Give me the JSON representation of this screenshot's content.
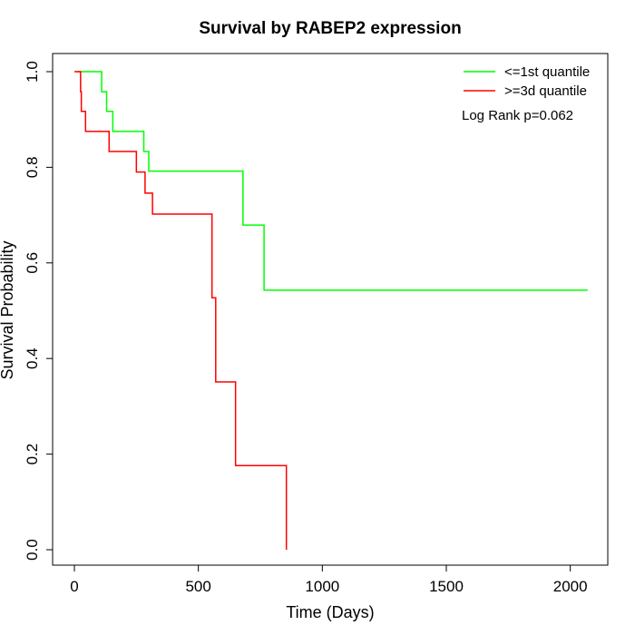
{
  "chart_data": {
    "type": "line",
    "title": "Survival by RABEP2 expression",
    "xlabel": "Time (Days)",
    "ylabel": "Survival Probability",
    "xlim": [
      0,
      2100
    ],
    "ylim": [
      0,
      1
    ],
    "x_ticks": [
      0,
      500,
      1000,
      1500,
      2000
    ],
    "y_ticks": [
      0.0,
      0.2,
      0.4,
      0.6,
      0.8,
      1.0
    ],
    "x_tick_labels": [
      "0",
      "500",
      "1000",
      "1500",
      "2000"
    ],
    "y_tick_labels": [
      "0.0",
      "0.2",
      "0.4",
      "0.6",
      "0.8",
      "1.0"
    ],
    "grid": false,
    "legend_position": "top-right",
    "annotation": "Log Rank p=0.062",
    "series": [
      {
        "name": "<=1st quantile",
        "color": "#00ff00",
        "steps": [
          [
            10,
            1.0
          ],
          [
            110,
            0.958
          ],
          [
            130,
            0.917
          ],
          [
            155,
            0.875
          ],
          [
            280,
            0.833
          ],
          [
            300,
            0.792
          ],
          [
            680,
            0.679
          ],
          [
            765,
            0.543
          ],
          [
            2070,
            0.543
          ]
        ]
      },
      {
        "name": ">=3d quantile",
        "color": "#ff0000",
        "steps": [
          [
            0,
            1.0
          ],
          [
            25,
            0.958
          ],
          [
            28,
            0.917
          ],
          [
            45,
            0.875
          ],
          [
            140,
            0.833
          ],
          [
            250,
            0.79
          ],
          [
            285,
            0.746
          ],
          [
            315,
            0.702
          ],
          [
            555,
            0.527
          ],
          [
            570,
            0.351
          ],
          [
            650,
            0.176
          ],
          [
            855,
            0.0
          ]
        ]
      }
    ]
  }
}
